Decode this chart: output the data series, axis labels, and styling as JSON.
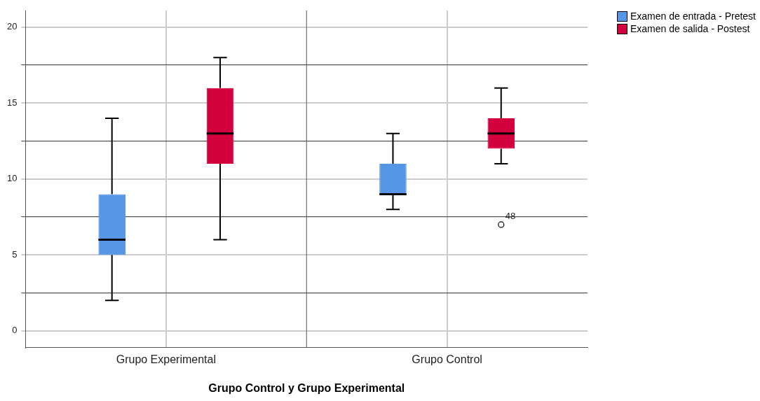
{
  "chart_data": {
    "type": "box",
    "xlabel": "Grupo Control y Grupo Experimental",
    "categories": [
      "Grupo Experimental",
      "Grupo Control"
    ],
    "series": [
      {
        "name": "Examen de entrada - Pretest",
        "color": "#5596e6",
        "boxes": [
          {
            "low": 2,
            "q1": 5,
            "median": 6,
            "q3": 9,
            "high": 14
          },
          {
            "low": 8,
            "q1": 9,
            "median": 9,
            "q3": 11,
            "high": 13
          }
        ]
      },
      {
        "name": "Examen de salida - Postest",
        "color": "#d2003c",
        "boxes": [
          {
            "low": 6,
            "q1": 11,
            "median": 13,
            "q3": 16,
            "high": 18
          },
          {
            "low": 11,
            "q1": 12,
            "median": 13,
            "q3": 14,
            "high": 16,
            "outliers": [
              7
            ]
          }
        ]
      }
    ],
    "ylim": [
      -1.1,
      21.1
    ],
    "yticks": [
      0,
      {
        "value": 2.5,
        "label": null
      },
      5,
      {
        "value": 7.5,
        "label": null
      },
      10,
      {
        "value": 12.5,
        "label": null
      },
      15,
      {
        "value": 17.5,
        "label": null
      },
      20
    ],
    "annotations": [
      "48"
    ],
    "grid": true,
    "legend": "top right"
  }
}
